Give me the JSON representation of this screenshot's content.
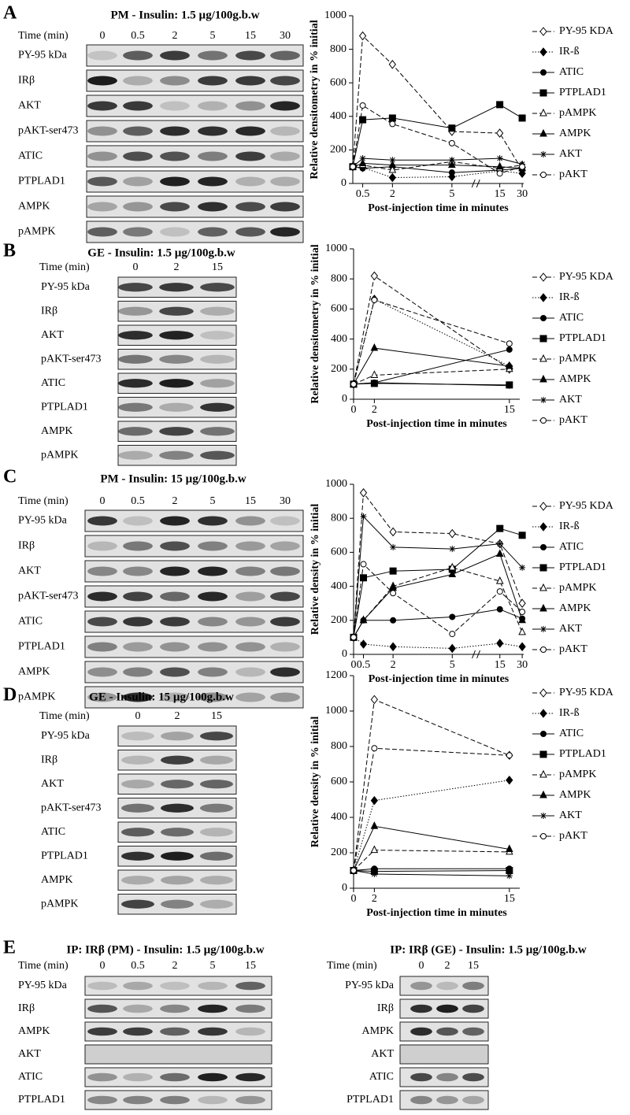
{
  "blots": [
    {
      "letter": "A",
      "title": "PM - Insulin: 1.5 µg/100g.b.w",
      "time_label": "Time (min)",
      "times": [
        0,
        0.5,
        2,
        5,
        15,
        30
      ],
      "rows": [
        "PY-95 kDa",
        "IRβ",
        "AKT",
        "pAKT-ser473",
        "ATIC",
        "PTPLAD1",
        "AMPK",
        "pAMPK"
      ]
    },
    {
      "letter": "B",
      "title": "GE - Insulin: 1.5 µg/100g.b.w",
      "time_label": "Time (min)",
      "times": [
        0,
        2,
        15
      ],
      "rows": [
        "PY-95 kDa",
        "IRβ",
        "AKT",
        "pAKT-ser473",
        "ATIC",
        "PTPLAD1",
        "AMPK",
        "pAMPK"
      ]
    },
    {
      "letter": "C",
      "title": "PM - Insulin: 15 µg/100g.b.w",
      "time_label": "Time (min)",
      "times": [
        0,
        0.5,
        2,
        5,
        15,
        30
      ],
      "rows": [
        "PY-95 kDa",
        "IRβ",
        "AKT",
        "pAKT-ser473",
        "ATIC",
        "PTPLAD1",
        "AMPK",
        "pAMPK"
      ]
    },
    {
      "letter": "D",
      "title": "GE - Insulin: 15 µg/100g.b.w",
      "time_label": "Time (min)",
      "times": [
        0,
        2,
        15
      ],
      "rows": [
        "PY-95 kDa",
        "IRβ",
        "AKT",
        "pAKT-ser473",
        "ATIC",
        "PTPLAD1",
        "AMPK",
        "pAMPK"
      ]
    },
    {
      "letter": "E",
      "title": "IP: IRβ (PM) - Insulin: 1.5 µg/100g.b.w",
      "time_label": "Time (min)",
      "times": [
        0,
        0.5,
        2,
        5,
        15
      ],
      "rows": [
        "PY-95 kDa",
        "IRβ",
        "AMPK",
        "AKT",
        "ATIC",
        "PTPLAD1"
      ]
    },
    {
      "title": "IP: IRβ (GE) - Insulin: 1.5 µg/100g.b.w",
      "time_label": "Time (min)",
      "times": [
        0,
        2,
        15
      ],
      "rows": [
        "PY-95 kDa",
        "IRβ",
        "AMPK",
        "AKT",
        "ATIC",
        "PTPLAD1"
      ]
    }
  ],
  "chart_data": [
    {
      "type": "line",
      "y_label": "Relative densitometry in % initial",
      "x_label": "Post-injection time in minutes",
      "x": [
        0,
        0.5,
        2,
        5,
        15,
        30
      ],
      "xlim": [
        0,
        31
      ],
      "xticks": [
        0.5,
        2,
        5,
        15,
        30
      ],
      "xbreak": [
        5,
        15
      ],
      "ylim": [
        0,
        1000
      ],
      "yticks": [
        0,
        200,
        400,
        600,
        800,
        1000
      ],
      "series": [
        {
          "name": "PY-95 KDA",
          "color": "#000000",
          "marker": "diamond",
          "filled": false,
          "dash": "dashed",
          "values": [
            100,
            880,
            710,
            310,
            300,
            80
          ]
        },
        {
          "name": "IR-ß",
          "color": "#000000",
          "marker": "diamond",
          "filled": true,
          "dash": "dotted",
          "values": [
            100,
            95,
            35,
            40,
            75,
            60
          ]
        },
        {
          "name": "ATIC",
          "color": "#000000",
          "marker": "circle",
          "filled": true,
          "dash": "solid",
          "values": [
            100,
            90,
            100,
            65,
            80,
            90
          ]
        },
        {
          "name": "PTPLAD1",
          "color": "#000000",
          "marker": "square",
          "filled": true,
          "dash": "solid",
          "values": [
            100,
            380,
            390,
            330,
            470,
            390
          ]
        },
        {
          "name": "pAMPK",
          "color": "#000000",
          "marker": "triangle",
          "filled": false,
          "dash": "dashed",
          "values": [
            100,
            110,
            80,
            130,
            90,
            110
          ]
        },
        {
          "name": "AMPK",
          "color": "#000000",
          "marker": "triangle",
          "filled": true,
          "dash": "solid",
          "values": [
            100,
            120,
            110,
            110,
            100,
            90
          ]
        },
        {
          "name": "AKT",
          "color": "#000000",
          "marker": "star",
          "filled": false,
          "dash": "solid",
          "values": [
            100,
            150,
            140,
            140,
            150,
            115
          ]
        },
        {
          "name": "pAKT",
          "color": "#000000",
          "marker": "circle",
          "filled": false,
          "dash": "dashed",
          "values": [
            100,
            465,
            355,
            240,
            60,
            100
          ]
        }
      ]
    },
    {
      "type": "line",
      "y_label": "Relative densitometry in % initial",
      "x_label": "Post-injection time in minutes",
      "x": [
        0,
        2,
        15
      ],
      "xlim": [
        0,
        16
      ],
      "xticks": [
        0,
        2,
        15
      ],
      "ylim": [
        0,
        1000
      ],
      "yticks": [
        0,
        200,
        400,
        600,
        800,
        1000
      ],
      "series": [
        {
          "name": "PY-95 KDA",
          "color": "#000000",
          "marker": "diamond",
          "filled": false,
          "dash": "dashed",
          "values": [
            100,
            820,
            200
          ]
        },
        {
          "name": "IR-ß",
          "color": "#000000",
          "marker": "diamond",
          "filled": true,
          "dash": "dotted",
          "values": [
            100,
            665,
            220
          ]
        },
        {
          "name": "ATIC",
          "color": "#000000",
          "marker": "circle",
          "filled": true,
          "dash": "solid",
          "values": [
            100,
            110,
            330
          ]
        },
        {
          "name": "PTPLAD1",
          "color": "#000000",
          "marker": "square",
          "filled": true,
          "dash": "solid",
          "values": [
            100,
            105,
            95
          ]
        },
        {
          "name": "pAMPK",
          "color": "#000000",
          "marker": "triangle",
          "filled": false,
          "dash": "dashed",
          "values": [
            100,
            160,
            200
          ]
        },
        {
          "name": "AMPK",
          "color": "#000000",
          "marker": "triangle",
          "filled": true,
          "dash": "solid",
          "values": [
            100,
            340,
            220
          ]
        },
        {
          "name": "AKT",
          "color": "#000000",
          "marker": "star",
          "filled": false,
          "dash": "solid",
          "values": [
            100,
            110,
            90
          ]
        },
        {
          "name": "pAKT",
          "color": "#000000",
          "marker": "circle",
          "filled": false,
          "dash": "dashed",
          "values": [
            100,
            660,
            370
          ]
        }
      ]
    },
    {
      "type": "line",
      "y_label": "Relative density in % initial",
      "x_label": "Post-injection time in minutes",
      "x": [
        0,
        0.5,
        2,
        5,
        15,
        30
      ],
      "xlim": [
        0,
        31
      ],
      "xticks": [
        0,
        0.5,
        2,
        5,
        15,
        30
      ],
      "xbreak": [
        5,
        15
      ],
      "ylim": [
        0,
        1000
      ],
      "yticks": [
        0,
        200,
        400,
        600,
        800,
        1000
      ],
      "series": [
        {
          "name": "PY-95 KDA",
          "color": "#000000",
          "marker": "diamond",
          "filled": false,
          "dash": "dashed",
          "values": [
            100,
            950,
            720,
            710,
            650,
            300
          ]
        },
        {
          "name": "IR-ß",
          "color": "#000000",
          "marker": "diamond",
          "filled": true,
          "dash": "dotted",
          "values": [
            100,
            60,
            45,
            35,
            65,
            45
          ]
        },
        {
          "name": "ATIC",
          "color": "#000000",
          "marker": "circle",
          "filled": true,
          "dash": "solid",
          "values": [
            100,
            200,
            200,
            220,
            265,
            210
          ]
        },
        {
          "name": "PTPLAD1",
          "color": "#000000",
          "marker": "square",
          "filled": true,
          "dash": "solid",
          "values": [
            100,
            450,
            490,
            500,
            740,
            700
          ]
        },
        {
          "name": "pAMPK",
          "color": "#000000",
          "marker": "triangle",
          "filled": false,
          "dash": "dashed",
          "values": [
            100,
            200,
            400,
            510,
            430,
            130
          ]
        },
        {
          "name": "AMPK",
          "color": "#000000",
          "marker": "triangle",
          "filled": true,
          "dash": "solid",
          "values": [
            100,
            200,
            390,
            470,
            590,
            200
          ]
        },
        {
          "name": "AKT",
          "color": "#000000",
          "marker": "star",
          "filled": false,
          "dash": "solid",
          "values": [
            100,
            810,
            630,
            620,
            650,
            510
          ]
        },
        {
          "name": "pAKT",
          "color": "#000000",
          "marker": "circle",
          "filled": false,
          "dash": "dashed",
          "values": [
            100,
            530,
            360,
            120,
            370,
            250
          ]
        }
      ]
    },
    {
      "type": "line",
      "y_label": "Relative density in % initial",
      "x_label": "Post-injection time in minutes",
      "x": [
        0,
        2,
        15
      ],
      "xlim": [
        0,
        16
      ],
      "xticks": [
        0,
        2,
        15
      ],
      "ylim": [
        0,
        1200
      ],
      "yticks": [
        0,
        200,
        400,
        600,
        800,
        1000,
        1200
      ],
      "series": [
        {
          "name": "PY-95 KDA",
          "color": "#000000",
          "marker": "diamond",
          "filled": false,
          "dash": "dashed",
          "values": [
            100,
            1065,
            750
          ]
        },
        {
          "name": "IR-ß",
          "color": "#000000",
          "marker": "diamond",
          "filled": true,
          "dash": "dotted",
          "values": [
            100,
            495,
            610
          ]
        },
        {
          "name": "ATIC",
          "color": "#000000",
          "marker": "circle",
          "filled": true,
          "dash": "solid",
          "values": [
            100,
            110,
            110
          ]
        },
        {
          "name": "PTPLAD1",
          "color": "#000000",
          "marker": "square",
          "filled": true,
          "dash": "solid",
          "values": [
            100,
            95,
            100
          ]
        },
        {
          "name": "pAMPK",
          "color": "#000000",
          "marker": "triangle",
          "filled": false,
          "dash": "dashed",
          "values": [
            100,
            215,
            205
          ]
        },
        {
          "name": "AMPK",
          "color": "#000000",
          "marker": "triangle",
          "filled": true,
          "dash": "solid",
          "values": [
            100,
            350,
            220
          ]
        },
        {
          "name": "AKT",
          "color": "#000000",
          "marker": "star",
          "filled": false,
          "dash": "solid",
          "values": [
            100,
            80,
            70
          ]
        },
        {
          "name": "pAKT",
          "color": "#000000",
          "marker": "circle",
          "filled": false,
          "dash": "dashed",
          "values": [
            100,
            790,
            750
          ]
        }
      ]
    }
  ]
}
